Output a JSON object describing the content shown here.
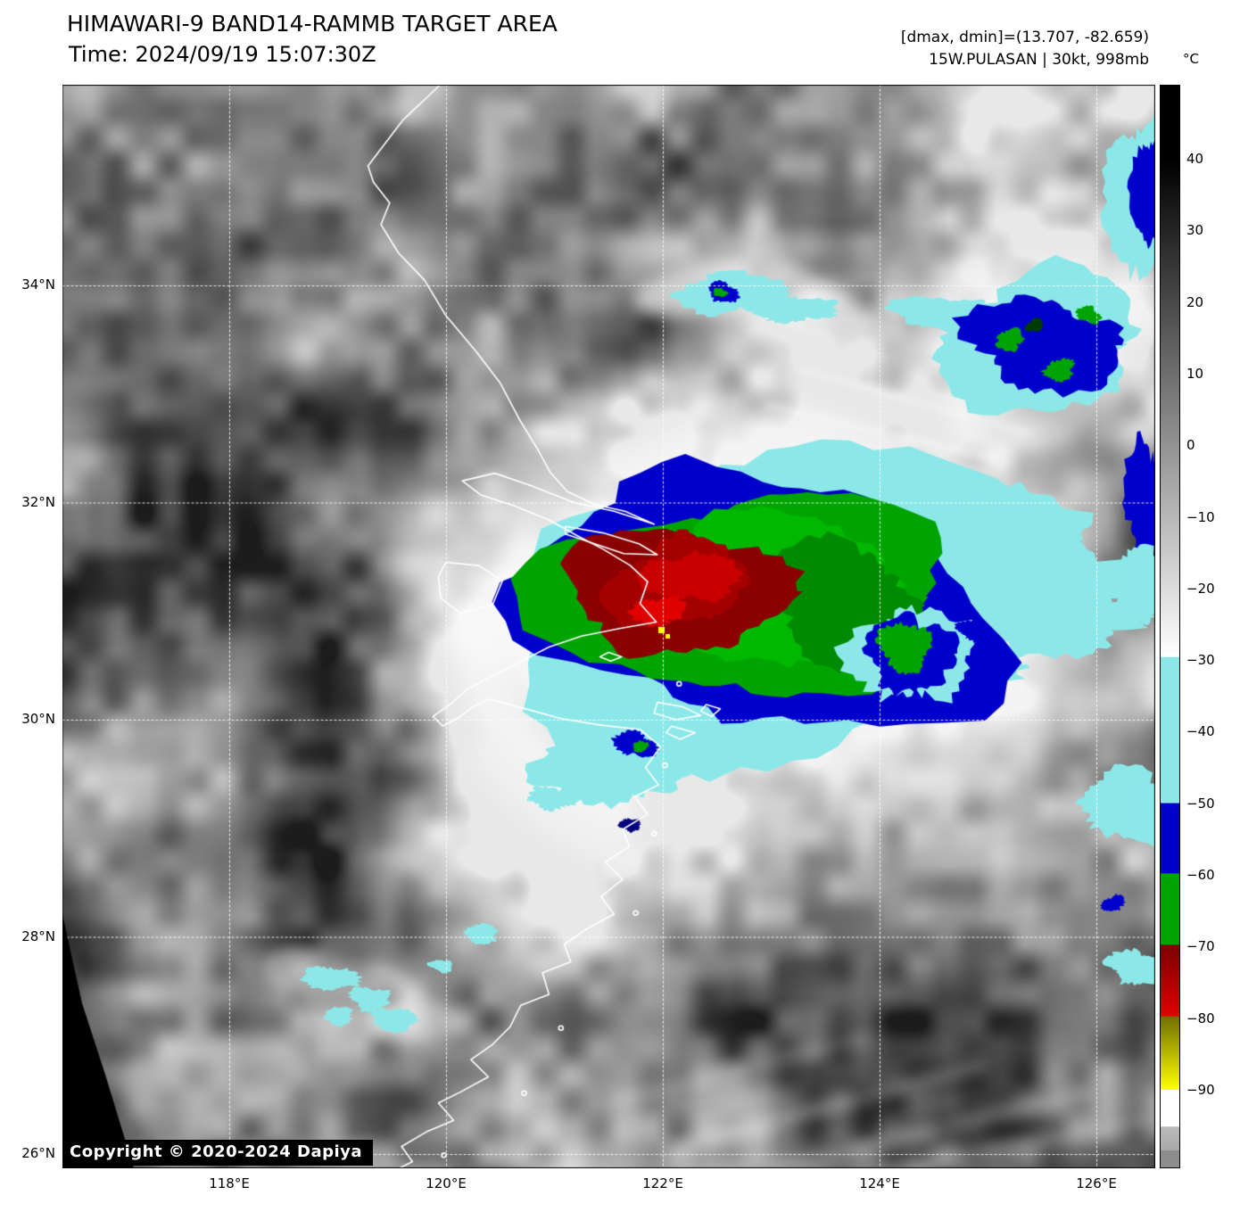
{
  "header": {
    "title": "HIMAWARI-9 BAND14-RAMMB TARGET AREA",
    "time_line": "Time: 2024/09/19 15:07:30Z",
    "dmax_dmin": "[dmax, dmin]=(13.707, -82.659)",
    "storm_info": "15W.PULASAN | 30kt, 998mb"
  },
  "map": {
    "copyright": "Copyright © 2020-2024 Dapiya",
    "lat_ticks": [
      "34°N",
      "32°N",
      "30°N",
      "28°N",
      "26°N"
    ],
    "lon_ticks": [
      "118°E",
      "120°E",
      "122°E",
      "124°E",
      "126°E"
    ]
  },
  "colorbar": {
    "unit": "°C",
    "tick_labels": [
      "40",
      "30",
      "20",
      "10",
      "0",
      "−10",
      "−20",
      "−30",
      "−40",
      "−50",
      "−60",
      "−70",
      "−80",
      "−90"
    ],
    "palette": {
      "cyan": "#8ce8e8",
      "blue": "#0000cd",
      "green": "#00a400",
      "dark_red": "#7a0000",
      "red": "#e00000",
      "yellow": "#ffff00",
      "warm_start": "#000000",
      "warm_end": "#ffffff",
      "coastline": "#ffffff"
    }
  }
}
